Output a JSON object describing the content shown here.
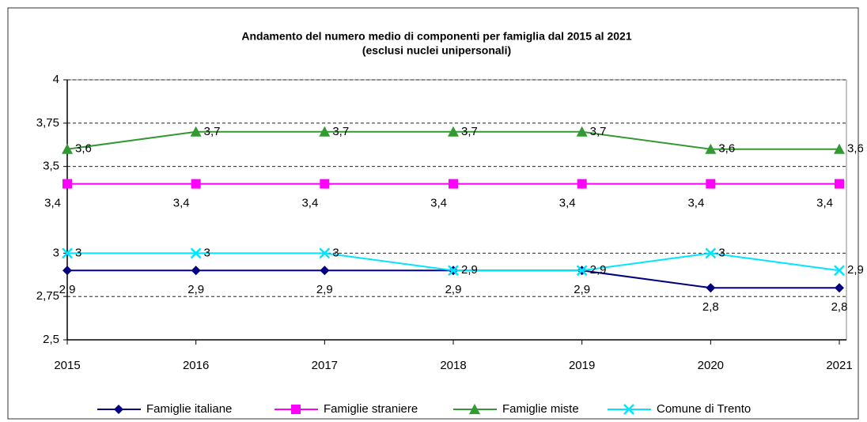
{
  "chart_data": {
    "type": "line",
    "title": "Andamento del numero medio di componenti per famiglia dal 2015 al 2021",
    "subtitle": "(esclusi nuclei unipersonali)",
    "categories": [
      "2015",
      "2016",
      "2017",
      "2018",
      "2019",
      "2020",
      "2021"
    ],
    "ylim": [
      2.5,
      4
    ],
    "yticks": [
      {
        "value": 2.5,
        "label": "2,5"
      },
      {
        "value": 2.75,
        "label": "2,75"
      },
      3,
      {
        "value": 3.5,
        "label": "3,5"
      },
      {
        "value": 3.75,
        "label": "3,75"
      },
      4
    ],
    "grid": true,
    "legend": "bottom",
    "series": [
      {
        "name": "Famiglie  italiane",
        "color": "#000080",
        "marker": "diamond",
        "values": [
          2.9,
          2.9,
          2.9,
          2.9,
          2.9,
          2.8,
          2.8
        ],
        "value_labels": [
          "2,9",
          "2,9",
          "2,9",
          "2,9",
          "2,9",
          "2,8",
          "2,8"
        ]
      },
      {
        "name": "Famiglie  straniere",
        "color": "#ff00ff",
        "marker": "square",
        "values": [
          3.4,
          3.4,
          3.4,
          3.4,
          3.4,
          3.4,
          3.4
        ],
        "value_labels": [
          "3,4",
          "3,4",
          "3,4",
          "3,4",
          "3,4",
          "3,4",
          "3,4"
        ]
      },
      {
        "name": "Famiglie  miste",
        "color": "#339933",
        "marker": "triangle",
        "values": [
          3.6,
          3.7,
          3.7,
          3.7,
          3.7,
          3.6,
          3.6
        ],
        "value_labels": [
          "3,6",
          "3,7",
          "3,7",
          "3,7",
          "3,7",
          "3,6",
          "3,6"
        ]
      },
      {
        "name": "Comune di Trento",
        "color": "#00e5ff",
        "marker": "x",
        "values": [
          3,
          3,
          3,
          2.9,
          2.9,
          3,
          2.9
        ],
        "value_labels": [
          "3",
          "3",
          "3",
          "2,9",
          "2,9",
          "3",
          "2,9"
        ]
      }
    ]
  }
}
